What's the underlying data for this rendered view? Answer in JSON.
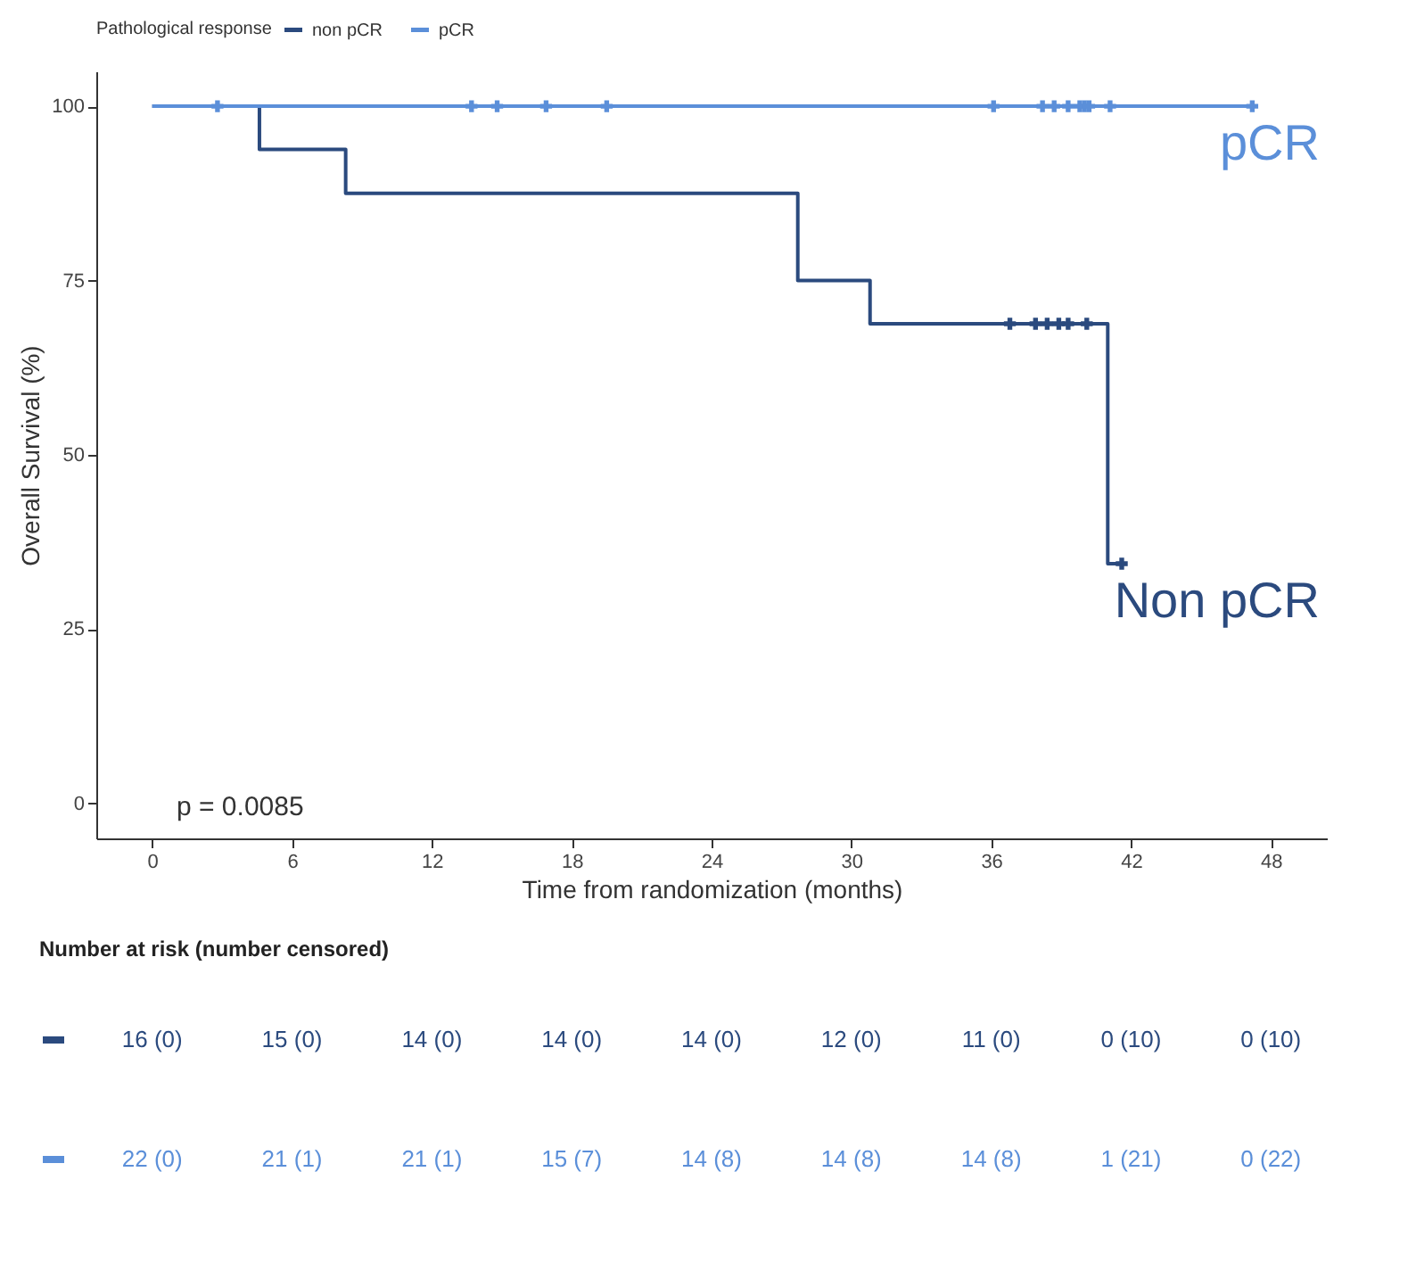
{
  "chart_data": [
    {
      "type": "step",
      "xlabel": "Time from randomization (months)",
      "ylabel": "Overall Survival (%)",
      "legend_title": "Pathological response",
      "legend": "top",
      "xlim": [
        -2.4,
        50.4
      ],
      "xticks": [
        0,
        6,
        12,
        18,
        24,
        30,
        36,
        42,
        48
      ],
      "ylim": [
        -5,
        105
      ],
      "yticks": [
        0,
        25,
        50,
        75,
        100
      ],
      "grid": false,
      "series": [
        {
          "name": "non pCR",
          "type": "step",
          "color": "#2b4a7e",
          "x": [
            0,
            4.6,
            8.3,
            27.7,
            30.8,
            41.0,
            41.6
          ],
          "values": [
            100,
            93.8,
            87.5,
            75,
            68.8,
            34.4,
            34.4
          ]
        },
        {
          "name": "pCR",
          "type": "step",
          "color": "#5b8fd9",
          "x": [
            0,
            47.2
          ],
          "values": [
            100,
            100
          ]
        },
        {
          "type": "scatter",
          "marker": "cross",
          "color": "#2b4a7e",
          "x": [
            36.8,
            37.9,
            38.4,
            38.9,
            39.3,
            40.1,
            41.6
          ],
          "values": [
            68.8,
            68.8,
            68.8,
            68.8,
            68.8,
            68.8,
            34.4
          ]
        },
        {
          "type": "scatter",
          "marker": "cross",
          "color": "#5b8fd9",
          "x": [
            2.8,
            13.7,
            14.8,
            16.9,
            19.5,
            36.1,
            38.2,
            38.7,
            39.3,
            39.8,
            40.0,
            40.2,
            41.1,
            47.2
          ],
          "values": [
            100,
            100,
            100,
            100,
            100,
            100,
            100,
            100,
            100,
            100,
            100,
            100,
            100,
            100
          ]
        }
      ],
      "annotations": [
        "Non pCR",
        "pCR",
        "p = 0.0085"
      ]
    },
    {
      "type": "other",
      "title": "Number at risk (number censored)",
      "annotations": [
        "16 (0)",
        "15 (0)",
        "14 (0)",
        "14 (0)",
        "14 (0)",
        "12 (0)",
        "11 (0)",
        "0 (10)",
        "0 (10)",
        "22 (0)",
        "21 (1)",
        "21 (1)",
        "15 (7)",
        "14 (8)",
        "14 (8)",
        "14 (8)",
        "1 (21)",
        "0 (22)"
      ]
    }
  ]
}
